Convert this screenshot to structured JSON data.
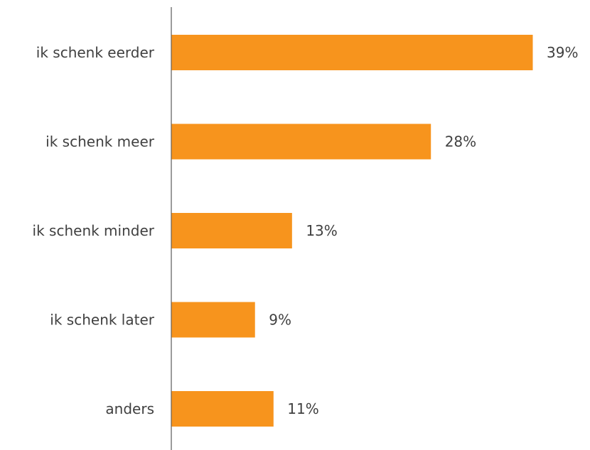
{
  "chart_data": {
    "type": "bar",
    "orientation": "horizontal",
    "categories": [
      "ik schenk eerder",
      "ik schenk meer",
      "ik schenk minder",
      "ik schenk later",
      "anders"
    ],
    "values": [
      39,
      28,
      13,
      9,
      11
    ],
    "value_labels": [
      "39%",
      "28%",
      "13%",
      "9%",
      "11%"
    ],
    "unit": "%",
    "xlim": [
      0,
      39
    ],
    "grid": false,
    "legend": "none",
    "bar_color": "#F7941D",
    "axis_color": "#595959",
    "text_color": "#404040"
  }
}
